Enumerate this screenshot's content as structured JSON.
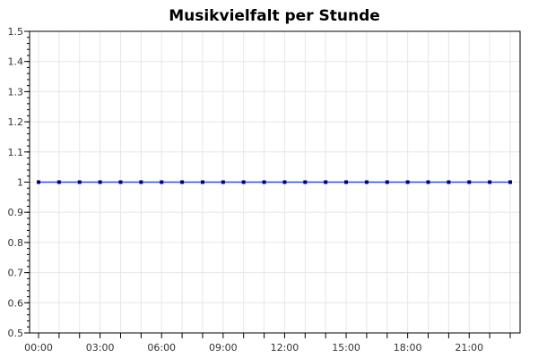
{
  "chart_data": {
    "type": "line",
    "title": "Musikvielfalt per Stunde",
    "xlabel": "",
    "ylabel": "",
    "ylim": [
      0.5,
      1.5
    ],
    "yticks": [
      "0.5",
      "0.6",
      "0.7",
      "0.8",
      "0.9",
      "1",
      "1.1",
      "1.2",
      "1.3",
      "1.4",
      "1.5"
    ],
    "xlim": [
      0,
      23
    ],
    "xticks": [
      {
        "hour": 0,
        "label": "00:00"
      },
      {
        "hour": 3,
        "label": "03:00"
      },
      {
        "hour": 6,
        "label": "06:00"
      },
      {
        "hour": 9,
        "label": "09:00"
      },
      {
        "hour": 12,
        "label": "12:00"
      },
      {
        "hour": 15,
        "label": "15:00"
      },
      {
        "hour": 18,
        "label": "18:00"
      },
      {
        "hour": 21,
        "label": "21:00"
      }
    ],
    "grid": true,
    "series": [
      {
        "color": "#2d4cf0",
        "marker_color": "#000080",
        "x": [
          0,
          1,
          2,
          3,
          4,
          5,
          6,
          7,
          8,
          9,
          10,
          11,
          12,
          13,
          14,
          15,
          16,
          17,
          18,
          19,
          20,
          21,
          22,
          23
        ],
        "values": [
          1,
          1,
          1,
          1,
          1,
          1,
          1,
          1,
          1,
          1,
          1,
          1,
          1,
          1,
          1,
          1,
          1,
          1,
          1,
          1,
          1,
          1,
          1,
          1
        ]
      }
    ]
  }
}
